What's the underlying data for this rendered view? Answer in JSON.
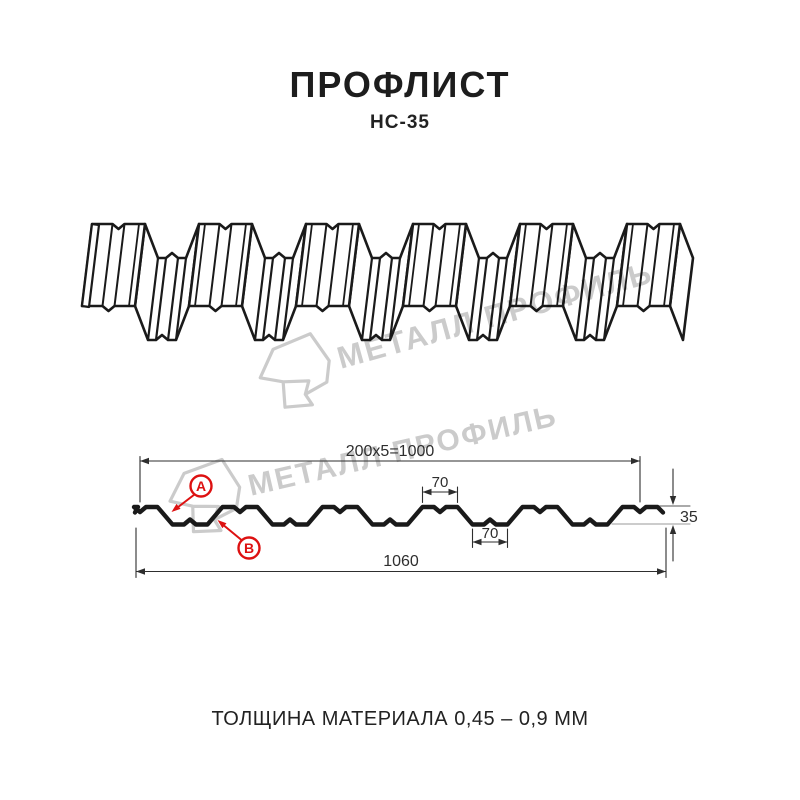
{
  "header": {
    "title": "ПРОФЛИСТ",
    "subtitle": "НС-35"
  },
  "footer": {
    "thickness_note": "ТОЛЩИНА МАТЕРИАЛА 0,45 – 0,9 ММ"
  },
  "watermark": {
    "brand": "МЕТАЛЛ ПРОФИЛЬ",
    "logo": "metall-profil-hexagon-logo"
  },
  "diagram": {
    "dims": {
      "pitch_total": "200x5=1000",
      "crest_width": "70",
      "valley_width": "70",
      "height": "35",
      "overall_width": "1060"
    },
    "labels": {
      "a": "A",
      "b": "B"
    },
    "colors": {
      "line": "#1a1a1a",
      "dimension": "#2e2e2e",
      "annotation": "#dd1111",
      "watermark": "#cbcbcb",
      "reference": "#999999"
    }
  }
}
